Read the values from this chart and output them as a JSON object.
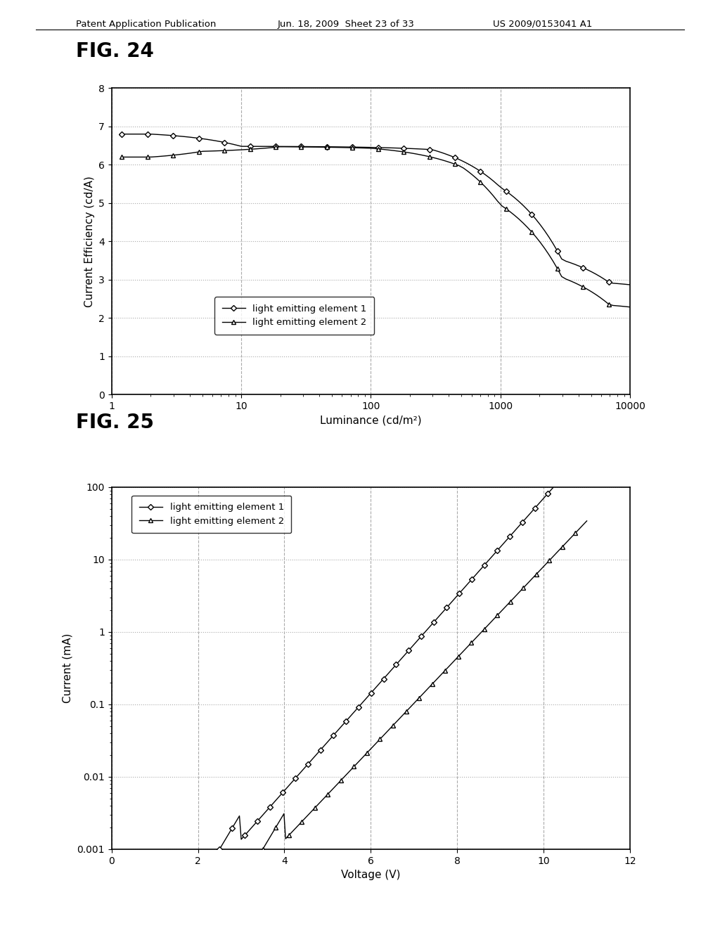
{
  "page_title": "Patent Application Publication",
  "page_date": "Jun. 18, 2009  Sheet 23 of 33",
  "page_patent": "US 2009/0153041 A1",
  "fig24_title": "FIG. 24",
  "fig25_title": "FIG. 25",
  "fig24_xlabel": "Luminance (cd/m²)",
  "fig24_ylabel": "Current Efficiency (cd/A)",
  "fig24_xlim": [
    1,
    10000
  ],
  "fig24_ylim": [
    0,
    8
  ],
  "fig24_yticks": [
    0,
    1,
    2,
    3,
    4,
    5,
    6,
    7,
    8
  ],
  "fig24_xtick_labels": [
    "1",
    "10",
    "100",
    "1000",
    "10000"
  ],
  "fig25_xlabel": "Voltage (V)",
  "fig25_ylabel": "Current (mA)",
  "fig25_xlim": [
    0,
    12
  ],
  "fig25_ylim_log": [
    0.001,
    100
  ],
  "fig25_xticks": [
    0,
    2,
    4,
    6,
    8,
    10,
    12
  ],
  "legend_label1": "light emitting element 1",
  "legend_label2": "light emitting element 2",
  "bg_color": "#ffffff",
  "line_color": "#000000",
  "grid_color_dot": "#aaaaaa",
  "grid_color_dash": "#aaaaaa"
}
